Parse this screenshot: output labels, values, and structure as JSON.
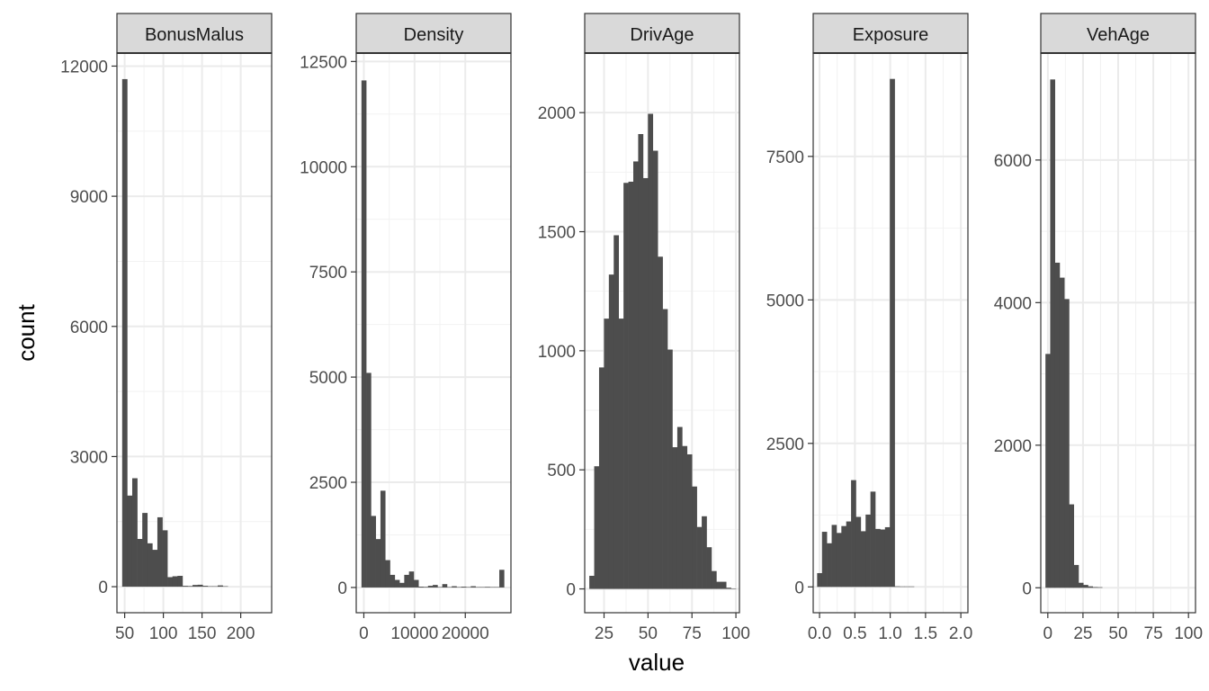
{
  "chart_data": {
    "type": "bar",
    "xlabel": "value",
    "ylabel": "count",
    "grid": true,
    "bar_color": "#4d4d4d",
    "panels": [
      {
        "name": "BonusMalus",
        "xlim": [
          40,
          240
        ],
        "ylim": [
          -600,
          12300
        ],
        "xticks": [
          50,
          100,
          150,
          200
        ],
        "xtick_labels": [
          "50",
          "100",
          "150",
          "200"
        ],
        "yticks": [
          0,
          3000,
          6000,
          9000,
          12000
        ],
        "ytick_labels": [
          "0",
          "3000",
          "6000",
          "9000",
          "12000"
        ],
        "bin_width": 6.5,
        "bins": [
          {
            "x": 50,
            "count": 11700
          },
          {
            "x": 56.5,
            "count": 2100
          },
          {
            "x": 63,
            "count": 2500
          },
          {
            "x": 69.5,
            "count": 1100
          },
          {
            "x": 76,
            "count": 1700
          },
          {
            "x": 82.5,
            "count": 1000
          },
          {
            "x": 89,
            "count": 850
          },
          {
            "x": 95.5,
            "count": 1600
          },
          {
            "x": 102,
            "count": 1300
          },
          {
            "x": 108.5,
            "count": 220
          },
          {
            "x": 115,
            "count": 240
          },
          {
            "x": 121.5,
            "count": 250
          },
          {
            "x": 128,
            "count": 20
          },
          {
            "x": 134.5,
            "count": 15
          },
          {
            "x": 141,
            "count": 40
          },
          {
            "x": 147.5,
            "count": 45
          },
          {
            "x": 154,
            "count": 20
          },
          {
            "x": 160.5,
            "count": 10
          },
          {
            "x": 167,
            "count": 8
          },
          {
            "x": 173.5,
            "count": 30
          },
          {
            "x": 180,
            "count": 5
          }
        ]
      },
      {
        "name": "Density",
        "xlim": [
          -1500,
          29000
        ],
        "ylim": [
          -600,
          12700
        ],
        "xticks": [
          0,
          10000,
          20000
        ],
        "xtick_labels": [
          "0",
          "10000",
          "20000"
        ],
        "yticks": [
          0,
          2500,
          5000,
          7500,
          10000,
          12500
        ],
        "ytick_labels": [
          "0",
          "2500",
          "5000",
          "7500",
          "10000",
          "12500"
        ],
        "bin_width": 937,
        "bins": [
          {
            "x": 0,
            "count": 12050
          },
          {
            "x": 937,
            "count": 5100
          },
          {
            "x": 1874,
            "count": 1700
          },
          {
            "x": 2811,
            "count": 1150
          },
          {
            "x": 3748,
            "count": 2300
          },
          {
            "x": 4685,
            "count": 650
          },
          {
            "x": 5622,
            "count": 300
          },
          {
            "x": 6559,
            "count": 180
          },
          {
            "x": 7496,
            "count": 110
          },
          {
            "x": 8433,
            "count": 300
          },
          {
            "x": 9370,
            "count": 380
          },
          {
            "x": 10307,
            "count": 180
          },
          {
            "x": 11244,
            "count": 20
          },
          {
            "x": 12181,
            "count": 15
          },
          {
            "x": 13118,
            "count": 40
          },
          {
            "x": 14055,
            "count": 60
          },
          {
            "x": 14992,
            "count": 10
          },
          {
            "x": 15929,
            "count": 80
          },
          {
            "x": 16866,
            "count": 10
          },
          {
            "x": 17803,
            "count": 30
          },
          {
            "x": 18740,
            "count": 10
          },
          {
            "x": 19677,
            "count": 20
          },
          {
            "x": 20614,
            "count": 5
          },
          {
            "x": 21551,
            "count": 30
          },
          {
            "x": 22488,
            "count": 10
          },
          {
            "x": 23425,
            "count": 5
          },
          {
            "x": 24362,
            "count": 15
          },
          {
            "x": 25299,
            "count": 10
          },
          {
            "x": 26236,
            "count": 5
          },
          {
            "x": 27173,
            "count": 420
          }
        ]
      },
      {
        "name": "DrivAge",
        "xlim": [
          14,
          102
        ],
        "ylim": [
          -100,
          2250
        ],
        "xticks": [
          25,
          50,
          75,
          100
        ],
        "xtick_labels": [
          "25",
          "50",
          "75",
          "100"
        ],
        "yticks": [
          0,
          500,
          1000,
          1500,
          2000
        ],
        "ytick_labels": [
          "0",
          "500",
          "1000",
          "1500",
          "2000"
        ],
        "bin_width": 2.78,
        "bins": [
          {
            "x": 18,
            "count": 55
          },
          {
            "x": 20.78,
            "count": 515
          },
          {
            "x": 23.56,
            "count": 930
          },
          {
            "x": 26.34,
            "count": 1135
          },
          {
            "x": 29.12,
            "count": 1320
          },
          {
            "x": 31.9,
            "count": 1485
          },
          {
            "x": 34.68,
            "count": 1135
          },
          {
            "x": 37.46,
            "count": 1705
          },
          {
            "x": 40.24,
            "count": 1710
          },
          {
            "x": 43.02,
            "count": 1795
          },
          {
            "x": 45.8,
            "count": 1910
          },
          {
            "x": 48.58,
            "count": 1725
          },
          {
            "x": 51.36,
            "count": 1995
          },
          {
            "x": 54.14,
            "count": 1840
          },
          {
            "x": 56.92,
            "count": 1395
          },
          {
            "x": 59.7,
            "count": 1175
          },
          {
            "x": 62.48,
            "count": 1005
          },
          {
            "x": 65.26,
            "count": 595
          },
          {
            "x": 68.04,
            "count": 680
          },
          {
            "x": 70.82,
            "count": 600
          },
          {
            "x": 73.6,
            "count": 565
          },
          {
            "x": 76.38,
            "count": 430
          },
          {
            "x": 79.16,
            "count": 260
          },
          {
            "x": 81.94,
            "count": 305
          },
          {
            "x": 84.72,
            "count": 175
          },
          {
            "x": 87.5,
            "count": 75
          },
          {
            "x": 90.28,
            "count": 30
          },
          {
            "x": 93.06,
            "count": 30
          },
          {
            "x": 95.84,
            "count": 5
          },
          {
            "x": 98.62,
            "count": 2
          }
        ]
      },
      {
        "name": "Exposure",
        "xlim": [
          -0.09,
          2.1
        ],
        "ylim": [
          -450,
          9300
        ],
        "xticks": [
          0.0,
          0.5,
          1.0,
          1.5,
          2.0
        ],
        "xtick_labels": [
          "0.0",
          "0.5",
          "1.0",
          "1.5",
          "2.0"
        ],
        "yticks": [
          0,
          2500,
          5000,
          7500
        ],
        "ytick_labels": [
          "0",
          "2500",
          "5000",
          "7500"
        ],
        "bin_width": 0.0686,
        "bins": [
          {
            "x": 0.0,
            "count": 240
          },
          {
            "x": 0.0686,
            "count": 960
          },
          {
            "x": 0.1372,
            "count": 760
          },
          {
            "x": 0.2058,
            "count": 1080
          },
          {
            "x": 0.2744,
            "count": 940
          },
          {
            "x": 0.343,
            "count": 1060
          },
          {
            "x": 0.4116,
            "count": 1140
          },
          {
            "x": 0.4802,
            "count": 1860
          },
          {
            "x": 0.5488,
            "count": 1220
          },
          {
            "x": 0.6174,
            "count": 970
          },
          {
            "x": 0.686,
            "count": 1260
          },
          {
            "x": 0.7546,
            "count": 1660
          },
          {
            "x": 0.8232,
            "count": 1010
          },
          {
            "x": 0.8918,
            "count": 1000
          },
          {
            "x": 0.9604,
            "count": 1040
          },
          {
            "x": 1.029,
            "count": 8850
          },
          {
            "x": 1.0976,
            "count": 10
          },
          {
            "x": 1.1662,
            "count": 5
          },
          {
            "x": 1.2348,
            "count": 5
          },
          {
            "x": 1.3034,
            "count": 2
          }
        ]
      },
      {
        "name": "VehAge",
        "xlim": [
          -5,
          105
        ],
        "ylim": [
          -350,
          7500
        ],
        "xticks": [
          0,
          25,
          50,
          75,
          100
        ],
        "xtick_labels": [
          "0",
          "25",
          "50",
          "75",
          "100"
        ],
        "yticks": [
          0,
          2000,
          4000,
          6000
        ],
        "ytick_labels": [
          "0",
          "2000",
          "4000",
          "6000"
        ],
        "bin_width": 3.36,
        "bins": [
          {
            "x": 0,
            "count": 3280
          },
          {
            "x": 3.36,
            "count": 7130
          },
          {
            "x": 6.72,
            "count": 4560
          },
          {
            "x": 10.08,
            "count": 4350
          },
          {
            "x": 13.44,
            "count": 4050
          },
          {
            "x": 16.8,
            "count": 1170
          },
          {
            "x": 20.16,
            "count": 320
          },
          {
            "x": 23.52,
            "count": 70
          },
          {
            "x": 26.88,
            "count": 40
          },
          {
            "x": 30.24,
            "count": 20
          },
          {
            "x": 33.6,
            "count": 10
          },
          {
            "x": 36.96,
            "count": 8
          }
        ]
      }
    ]
  }
}
